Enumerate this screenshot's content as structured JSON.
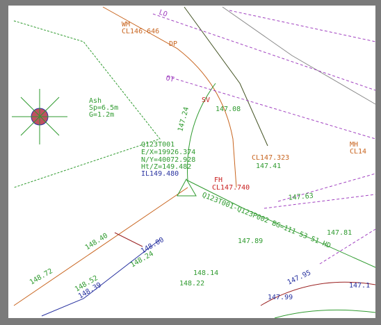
{
  "labels": [
    "WM",
    "CL146.646",
    "DP",
    "LO",
    "OT",
    "Ash",
    "Sp=6.5m",
    "G=1.2m",
    "SV",
    "147.08",
    "147.24",
    "Q123T001",
    "E/X=19926.374",
    "N/Y=40072.928",
    "Ht/Z=149.482",
    "IL149.480",
    "CL147.323",
    "147.41",
    "MH",
    "CL14",
    "FH",
    "CL147.740",
    "Q123T001-Q123P002 BG=111 53 51 HD",
    "147.63",
    "147.81",
    "147.89",
    "148.40",
    "148.00",
    "148.24",
    "148.14",
    "148.22",
    "148.72",
    "148.52",
    "148.39",
    "147.95",
    "147.99",
    "147.1"
  ]
}
